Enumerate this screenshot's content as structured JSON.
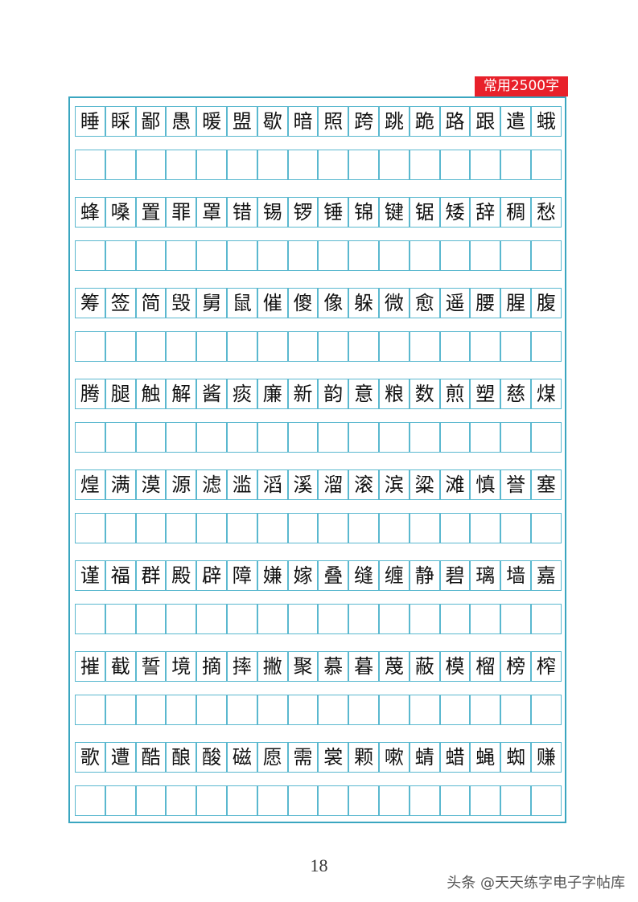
{
  "header": {
    "badge": "常用2500字"
  },
  "rows": [
    [
      "睡",
      "睬",
      "鄙",
      "愚",
      "暖",
      "盟",
      "歇",
      "暗",
      "照",
      "跨",
      "跳",
      "跪",
      "路",
      "跟",
      "遣",
      "蛾"
    ],
    [
      "蜂",
      "嗓",
      "置",
      "罪",
      "罩",
      "错",
      "锡",
      "锣",
      "锤",
      "锦",
      "键",
      "锯",
      "矮",
      "辞",
      "稠",
      "愁"
    ],
    [
      "筹",
      "签",
      "简",
      "毁",
      "舅",
      "鼠",
      "催",
      "傻",
      "像",
      "躲",
      "微",
      "愈",
      "遥",
      "腰",
      "腥",
      "腹"
    ],
    [
      "腾",
      "腿",
      "触",
      "解",
      "酱",
      "痰",
      "廉",
      "新",
      "韵",
      "意",
      "粮",
      "数",
      "煎",
      "塑",
      "慈",
      "煤"
    ],
    [
      "煌",
      "满",
      "漠",
      "源",
      "滤",
      "滥",
      "滔",
      "溪",
      "溜",
      "滚",
      "滨",
      "粱",
      "滩",
      "慎",
      "誉",
      "塞"
    ],
    [
      "谨",
      "福",
      "群",
      "殿",
      "辟",
      "障",
      "嫌",
      "嫁",
      "叠",
      "缝",
      "缠",
      "静",
      "碧",
      "璃",
      "墙",
      "嘉"
    ],
    [
      "摧",
      "截",
      "誓",
      "境",
      "摘",
      "摔",
      "撇",
      "聚",
      "慕",
      "暮",
      "蔑",
      "蔽",
      "模",
      "榴",
      "榜",
      "榨"
    ],
    [
      "歌",
      "遭",
      "酷",
      "酿",
      "酸",
      "磁",
      "愿",
      "需",
      "裳",
      "颗",
      "嗽",
      "蜻",
      "蜡",
      "蝇",
      "蜘",
      "赚"
    ]
  ],
  "footer": {
    "page_number": "18",
    "watermark": "头条 @天天练字电子字帖库"
  }
}
